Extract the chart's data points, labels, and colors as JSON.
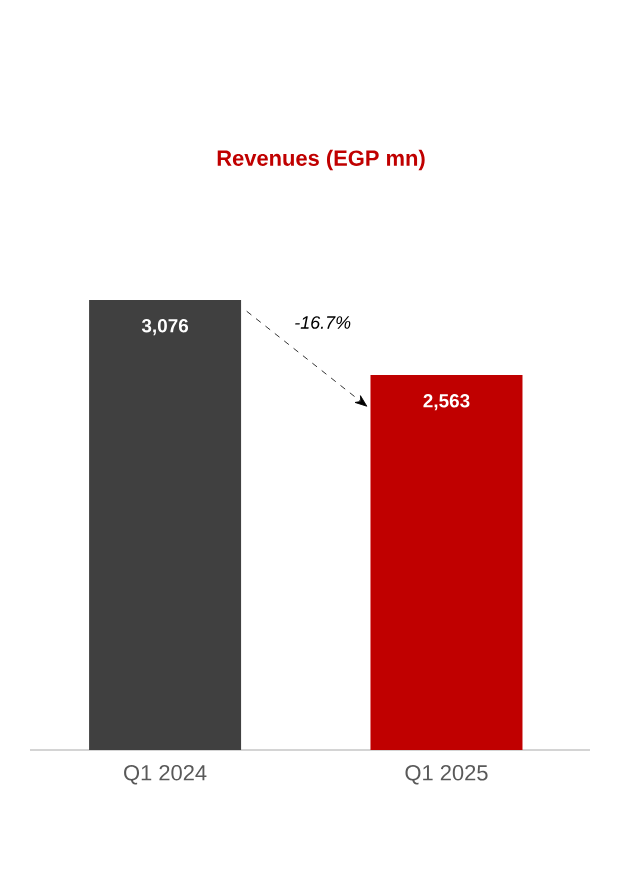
{
  "chart_data": {
    "type": "bar",
    "title": "Revenues (EGP mn)",
    "categories": [
      "Q1 2024",
      "Q1 2025"
    ],
    "values": [
      3076,
      2563
    ],
    "value_labels": [
      "3,076",
      "2,563"
    ],
    "colors": [
      "#404040",
      "#c00000"
    ],
    "annotations": [
      "-16.7%"
    ]
  }
}
